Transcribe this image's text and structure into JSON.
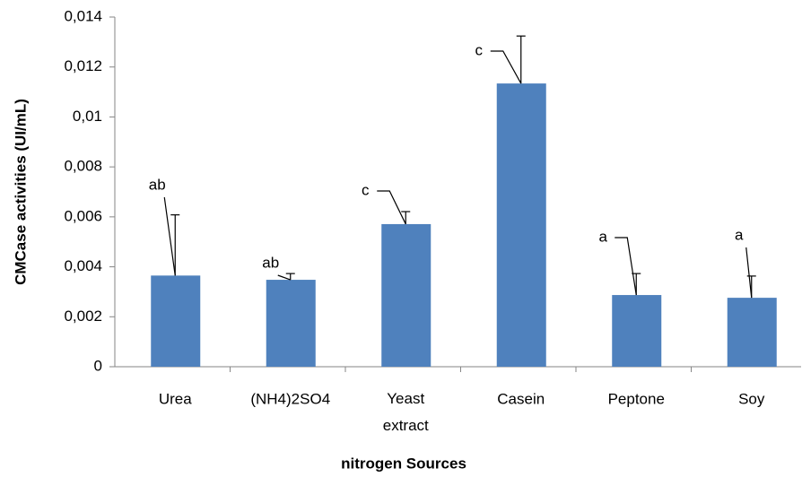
{
  "chart_data": {
    "type": "bar",
    "categories": [
      "Urea",
      "(NH4)2SO4",
      "Yeast extract",
      "Casein",
      "Peptone",
      "Soy"
    ],
    "values": [
      0.00365,
      0.00348,
      0.00571,
      0.01134,
      0.00287,
      0.00276
    ],
    "errors": [
      0.00243,
      0.00025,
      0.0005,
      0.0019,
      0.00086,
      0.00087
    ],
    "annotations": [
      "ab",
      "ab",
      "c",
      "c",
      "a",
      "a"
    ],
    "color": "#4f81bd",
    "x_label": "nitrogen Sources",
    "y_label": "CMCase activities (UI/mL)",
    "ylim": [
      0,
      0.014
    ],
    "yticks": [
      0,
      {
        "value": 0.002,
        "label": "0,002"
      },
      {
        "value": 0.004,
        "label": "0,004"
      },
      {
        "value": 0.006,
        "label": "0,006"
      },
      {
        "value": 0.008,
        "label": "0,008"
      },
      {
        "value": 0.01,
        "label": "0,01"
      },
      {
        "value": 0.012,
        "label": "0,012"
      },
      {
        "value": 0.014,
        "label": "0,014"
      }
    ],
    "grid": false
  }
}
